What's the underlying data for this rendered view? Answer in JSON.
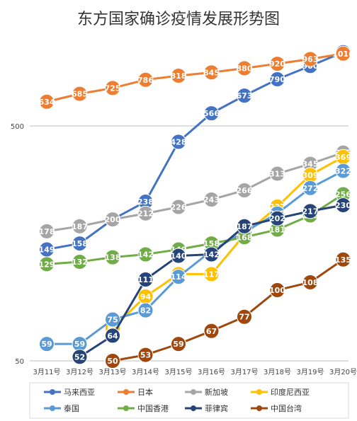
{
  "chart_data": {
    "type": "line",
    "title": "东方国家确诊疫情发展形势图",
    "xlabel": "",
    "ylabel": "",
    "yscale": "log",
    "ylim": [
      50,
      1100
    ],
    "yticks": [
      50,
      500
    ],
    "grid": true,
    "legend_position": "bottom",
    "categories": [
      "3月11号",
      "3月12号",
      "3月13号",
      "3月14号",
      "3月15号",
      "3月16号",
      "3月17号",
      "3月18号",
      "3月19号",
      "3月20号"
    ],
    "series": [
      {
        "name": "马来西亚",
        "color": "#4472C4",
        "values": [
          149,
          158,
          200,
          238,
          428,
          566,
          673,
          790,
          900,
          1030
        ]
      },
      {
        "name": "日本",
        "color": "#ED7D31",
        "values": [
          634,
          685,
          725,
          786,
          818,
          845,
          880,
          920,
          963,
          1016
        ]
      },
      {
        "name": "新加坡",
        "color": "#A5A5A5",
        "values": [
          178,
          187,
          200,
          212,
          226,
          243,
          266,
          313,
          345,
          385
        ]
      },
      {
        "name": "印度尼西亚",
        "color": "#FFC000",
        "values": [
          null,
          null,
          69,
          94,
          117,
          117,
          172,
          227,
          309,
          369
        ]
      },
      {
        "name": "泰国",
        "color": "#5B9BD5",
        "values": [
          59,
          59,
          75,
          82,
          114,
          147,
          177,
          212,
          272,
          322
        ]
      },
      {
        "name": "中国香港",
        "color": "#70AD47",
        "values": [
          129,
          132,
          138,
          142,
          149,
          158,
          168,
          181,
          208,
          256
        ]
      },
      {
        "name": "菲律宾",
        "color": "#264478",
        "values": [
          null,
          52,
          64,
          111,
          140,
          142,
          187,
          202,
          217,
          230
        ]
      },
      {
        "name": "中国台湾",
        "color": "#9E480E",
        "values": [
          null,
          null,
          50,
          53,
          59,
          67,
          77,
          100,
          108,
          135
        ]
      }
    ]
  }
}
